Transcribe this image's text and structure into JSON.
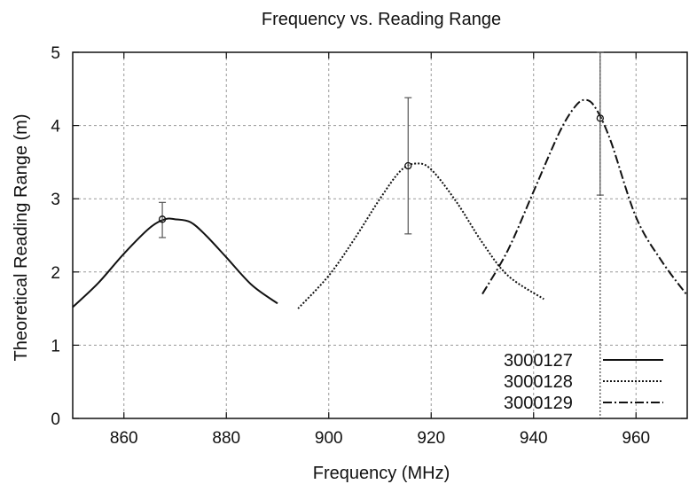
{
  "chart_data": {
    "type": "line",
    "title": "Frequency vs. Reading Range",
    "xlabel": "Frequency (MHz)",
    "ylabel": "Theoretical Reading Range (m)",
    "xlim": [
      850,
      970
    ],
    "ylim": [
      0,
      5
    ],
    "xticks": [
      860,
      880,
      900,
      920,
      940,
      960
    ],
    "yticks": [
      0,
      1,
      2,
      3,
      4,
      5
    ],
    "grid": true,
    "legend_position": "bottom-right",
    "series": [
      {
        "name": "3000127",
        "dash": "solid",
        "x": [
          850,
          855,
          860,
          865,
          868,
          870,
          873,
          876,
          880,
          885,
          890
        ],
        "y": [
          1.52,
          1.85,
          2.25,
          2.6,
          2.72,
          2.72,
          2.68,
          2.5,
          2.2,
          1.82,
          1.57
        ]
      },
      {
        "name": "3000128",
        "dash": "dotted",
        "x": [
          894,
          900,
          905,
          910,
          914,
          917,
          920,
          925,
          930,
          935,
          942
        ],
        "y": [
          1.5,
          1.95,
          2.45,
          3.0,
          3.38,
          3.48,
          3.4,
          2.95,
          2.4,
          1.95,
          1.63
        ]
      },
      {
        "name": "3000129",
        "dash": "dash-dot",
        "x": [
          930,
          935,
          940,
          945,
          948,
          950,
          952,
          955,
          960,
          965,
          970
        ],
        "y": [
          1.7,
          2.3,
          3.1,
          3.9,
          4.25,
          4.35,
          4.25,
          3.8,
          2.75,
          2.15,
          1.68
        ]
      }
    ],
    "error_bars": [
      {
        "series": "3000127",
        "x": 867.5,
        "y": 2.72,
        "low": 2.47,
        "high": 2.95
      },
      {
        "series": "3000128",
        "x": 915.5,
        "y": 3.45,
        "low": 2.52,
        "high": 4.38
      },
      {
        "series": "3000129",
        "x": 953,
        "y": 4.1,
        "low": 3.05,
        "high": 5.0
      }
    ],
    "vertical_reference_lines": [
      {
        "x": 953,
        "style": "dotted"
      }
    ]
  }
}
